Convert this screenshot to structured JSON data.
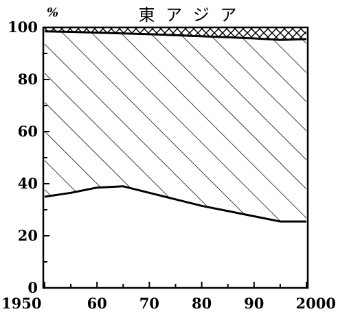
{
  "chart_data": {
    "type": "area",
    "title": "東 ア ジ ア",
    "ylabel": "%",
    "ylim": [
      0,
      100
    ],
    "xlim": [
      1950,
      2000
    ],
    "grid": false,
    "y_ticks": [
      0,
      20,
      40,
      60,
      80,
      100
    ],
    "y_tick_labels": [
      "0",
      "20",
      "40",
      "60",
      "80",
      "100"
    ],
    "x_ticks": [
      1950,
      1960,
      1970,
      1980,
      1990,
      2000
    ],
    "x_tick_labels": [
      "1950",
      "60",
      "70",
      "80",
      "90",
      "2000"
    ],
    "x": [
      1950,
      1955,
      1960,
      1965,
      1970,
      1975,
      1980,
      1985,
      1990,
      1995,
      2000
    ],
    "boundaries": [
      {
        "values": [
          35,
          36.5,
          38.5,
          39,
          36.5,
          34,
          31.5,
          29.5,
          27.5,
          25.5,
          25.5
        ]
      },
      {
        "values": [
          98.5,
          98.3,
          98,
          97.7,
          97.4,
          97,
          96.6,
          96.2,
          95.8,
          95.2,
          95.5
        ]
      },
      {
        "values": [
          100,
          100,
          100,
          100,
          100,
          100,
          100,
          100,
          100,
          100,
          100
        ]
      }
    ],
    "fills": [
      "blank",
      "diagonal-hatch",
      "cross-hatch"
    ],
    "colors": {
      "ink": "#000000",
      "background": "#ffffff"
    }
  }
}
